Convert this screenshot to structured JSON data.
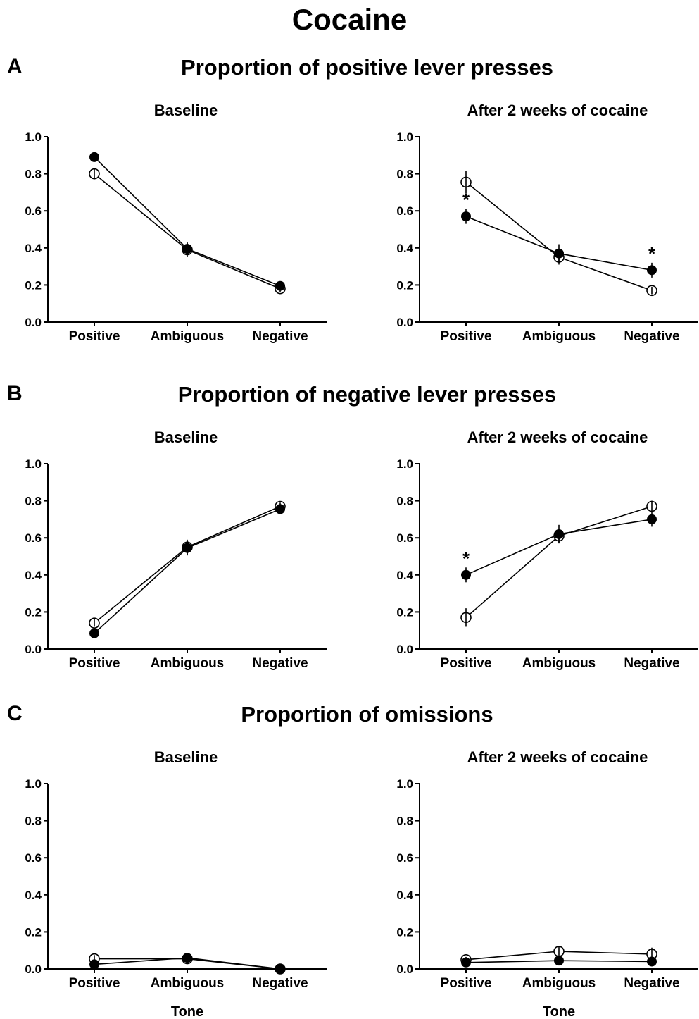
{
  "title": "Cocaine",
  "chart_data": [
    {
      "panel": "A",
      "section_title": "Proportion of positive lever presses",
      "title": "Baseline",
      "type": "line",
      "categories": [
        "Positive",
        "Ambiguous",
        "Negative"
      ],
      "xlabel": "",
      "ylim": [
        0,
        1.0
      ],
      "yticks": [
        "0.0",
        "0.2",
        "0.4",
        "0.6",
        "0.8",
        "1.0"
      ],
      "series": [
        {
          "marker": "open",
          "values": [
            0.8,
            0.39,
            0.18
          ],
          "errors": [
            0.03,
            0.04,
            0.02
          ],
          "sig": [
            false,
            false,
            false
          ]
        },
        {
          "marker": "filled",
          "values": [
            0.89,
            0.395,
            0.195
          ],
          "errors": [
            0.015,
            0.03,
            0.02
          ],
          "sig": [
            false,
            false,
            false
          ]
        }
      ]
    },
    {
      "panel": "A",
      "title": "After 2 weeks of cocaine",
      "type": "line",
      "categories": [
        "Positive",
        "Ambiguous",
        "Negative"
      ],
      "xlabel": "",
      "ylim": [
        0,
        1.0
      ],
      "yticks": [
        "0.0",
        "0.2",
        "0.4",
        "0.6",
        "0.8",
        "1.0"
      ],
      "series": [
        {
          "marker": "open",
          "values": [
            0.755,
            0.35,
            0.17
          ],
          "errors": [
            0.06,
            0.04,
            0.02
          ],
          "sig": [
            false,
            false,
            false
          ]
        },
        {
          "marker": "filled",
          "values": [
            0.57,
            0.37,
            0.28
          ],
          "errors": [
            0.04,
            0.05,
            0.04
          ],
          "sig": [
            true,
            false,
            true
          ]
        }
      ]
    },
    {
      "panel": "B",
      "section_title": "Proportion of negative lever presses",
      "title": "Baseline",
      "type": "line",
      "categories": [
        "Positive",
        "Ambiguous",
        "Negative"
      ],
      "xlabel": "",
      "ylim": [
        0,
        1.0
      ],
      "yticks": [
        "0.0",
        "0.2",
        "0.4",
        "0.6",
        "0.8",
        "1.0"
      ],
      "series": [
        {
          "marker": "open",
          "values": [
            0.14,
            0.55,
            0.77
          ],
          "errors": [
            0.02,
            0.04,
            0.02
          ],
          "sig": [
            false,
            false,
            false
          ]
        },
        {
          "marker": "filled",
          "values": [
            0.085,
            0.545,
            0.755
          ],
          "errors": [
            0.015,
            0.04,
            0.02
          ],
          "sig": [
            false,
            false,
            false
          ]
        }
      ]
    },
    {
      "panel": "B",
      "title": "After 2 weeks of cocaine",
      "type": "line",
      "categories": [
        "Positive",
        "Ambiguous",
        "Negative"
      ],
      "xlabel": "",
      "ylim": [
        0,
        1.0
      ],
      "yticks": [
        "0.0",
        "0.2",
        "0.4",
        "0.6",
        "0.8",
        "1.0"
      ],
      "series": [
        {
          "marker": "open",
          "values": [
            0.17,
            0.61,
            0.77
          ],
          "errors": [
            0.05,
            0.04,
            0.03
          ],
          "sig": [
            false,
            false,
            false
          ]
        },
        {
          "marker": "filled",
          "values": [
            0.4,
            0.62,
            0.7
          ],
          "errors": [
            0.04,
            0.05,
            0.04
          ],
          "sig": [
            true,
            false,
            false
          ]
        }
      ]
    },
    {
      "panel": "C",
      "section_title": "Proportion of omissions",
      "title": "Baseline",
      "type": "line",
      "categories": [
        "Positive",
        "Ambiguous",
        "Negative"
      ],
      "xlabel": "Tone",
      "ylim": [
        0,
        1.0
      ],
      "yticks": [
        "0.0",
        "0.2",
        "0.4",
        "0.6",
        "0.8",
        "1.0"
      ],
      "series": [
        {
          "marker": "open",
          "values": [
            0.055,
            0.055,
            0.0
          ],
          "errors": [
            0.02,
            0.02,
            0.0
          ],
          "sig": [
            false,
            false,
            false
          ]
        },
        {
          "marker": "filled",
          "values": [
            0.025,
            0.06,
            0.0
          ],
          "errors": [
            0.01,
            0.015,
            0.0
          ],
          "sig": [
            false,
            false,
            false
          ]
        }
      ]
    },
    {
      "panel": "C",
      "title": "After 2 weeks of cocaine",
      "type": "line",
      "categories": [
        "Positive",
        "Ambiguous",
        "Negative"
      ],
      "xlabel": "Tone",
      "ylim": [
        0,
        1.0
      ],
      "yticks": [
        "0.0",
        "0.2",
        "0.4",
        "0.6",
        "0.8",
        "1.0"
      ],
      "series": [
        {
          "marker": "open",
          "values": [
            0.05,
            0.095,
            0.08
          ],
          "errors": [
            0.015,
            0.03,
            0.035
          ],
          "sig": [
            false,
            false,
            false
          ]
        },
        {
          "marker": "filled",
          "values": [
            0.035,
            0.045,
            0.04
          ],
          "errors": [
            0.01,
            0.02,
            0.015
          ],
          "sig": [
            false,
            false,
            false
          ]
        }
      ]
    }
  ]
}
